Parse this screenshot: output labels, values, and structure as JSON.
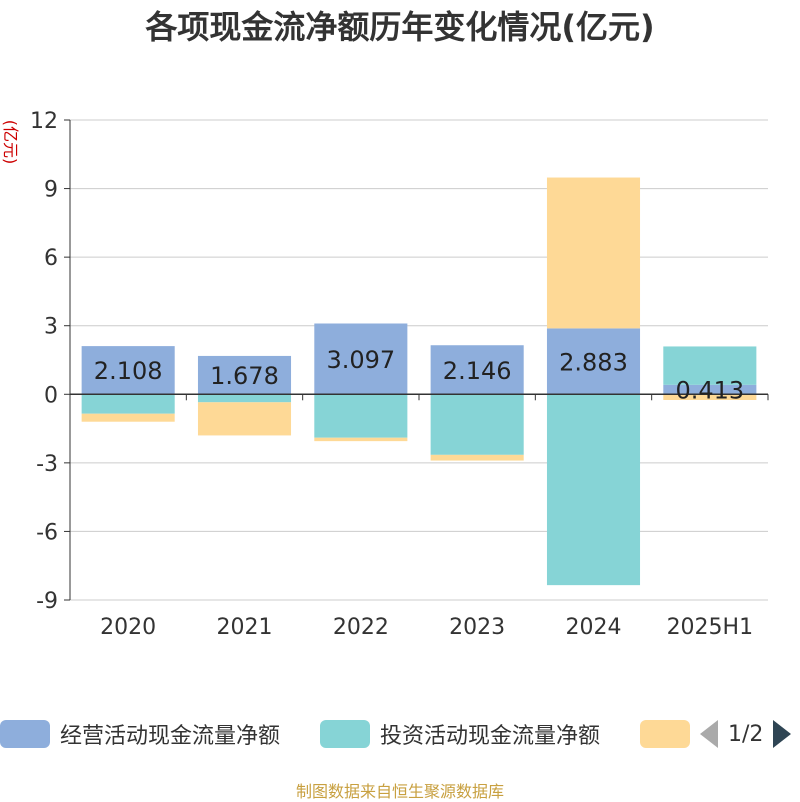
{
  "title": "各项现金流净额历年变化情况(亿元)",
  "unit_label": "(亿元)",
  "source": "制图数据来自恒生聚源数据库",
  "legend": {
    "page": "1/2"
  },
  "colors": {
    "operating": "#8eaedc",
    "investing": "#86d4d6",
    "financing": "#fed996",
    "axis": "#333333",
    "grid": "#cccccc"
  },
  "chart_data": {
    "type": "bar",
    "stacked": true,
    "categories": [
      "2020",
      "2021",
      "2022",
      "2023",
      "2024",
      "2025H1"
    ],
    "ylim": [
      -9,
      12
    ],
    "yticks": [
      -9,
      -6,
      -3,
      0,
      3,
      6,
      9,
      12
    ],
    "series": [
      {
        "name": "经营活动现金流量净额",
        "color_key": "operating",
        "values": [
          2.108,
          1.678,
          3.097,
          2.146,
          2.883,
          0.413
        ],
        "labels": [
          "2.108",
          "1.678",
          "3.097",
          "2.146",
          "2.883",
          "0.413"
        ]
      },
      {
        "name": "投资活动现金流量净额",
        "color_key": "investing",
        "values": [
          -0.85,
          -0.35,
          -1.9,
          -2.65,
          -8.35,
          1.68
        ]
      },
      {
        "name": "",
        "color_key": "financing",
        "values": [
          -0.35,
          -1.45,
          -0.15,
          -0.25,
          6.6,
          -0.25
        ]
      }
    ],
    "grid": true,
    "legend_position": "bottom"
  }
}
